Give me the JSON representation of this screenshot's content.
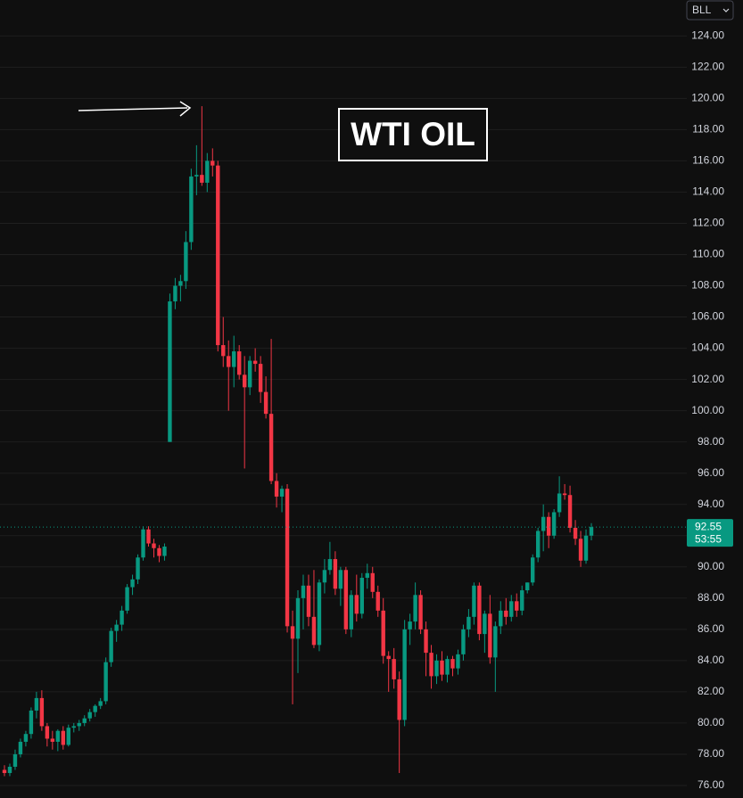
{
  "chart_data": {
    "type": "candlestick",
    "title": "WTI OIL",
    "symbol_menu": "BLL",
    "up_color": "#089981",
    "down_color": "#f23645",
    "ylim": [
      75.2,
      126.3
    ],
    "yticks": [
      {
        "value": 76,
        "label": "76.00"
      },
      {
        "value": 78,
        "label": "78.00"
      },
      {
        "value": 80,
        "label": "80.00"
      },
      {
        "value": 82,
        "label": "82.00"
      },
      {
        "value": 84,
        "label": "84.00"
      },
      {
        "value": 86,
        "label": "86.00"
      },
      {
        "value": 88,
        "label": "88.00"
      },
      {
        "value": 90,
        "label": "90.00"
      },
      {
        "value": 92,
        "label": "92.00"
      },
      {
        "value": 94,
        "label": "94.00"
      },
      {
        "value": 96,
        "label": "96.00"
      },
      {
        "value": 98,
        "label": "98.00"
      },
      {
        "value": 100,
        "label": "100.00"
      },
      {
        "value": 102,
        "label": "102.00"
      },
      {
        "value": 104,
        "label": "104.00"
      },
      {
        "value": 106,
        "label": "106.00"
      },
      {
        "value": 108,
        "label": "108.00"
      },
      {
        "value": 110,
        "label": "110.00"
      },
      {
        "value": 112,
        "label": "112.00"
      },
      {
        "value": 114,
        "label": "114.00"
      },
      {
        "value": 116,
        "label": "116.00"
      },
      {
        "value": 118,
        "label": "118.00"
      },
      {
        "value": 120,
        "label": "120.00"
      },
      {
        "value": 122,
        "label": "122.00"
      },
      {
        "value": 124,
        "label": "124.00"
      }
    ],
    "last_price": {
      "value": 92.55,
      "label": "92.55"
    },
    "countdown": "53:55",
    "ohlc": [
      [
        77,
        77.3,
        76.6,
        76.8
      ],
      [
        76.8,
        77.4,
        76.6,
        77.2
      ],
      [
        77.2,
        78.3,
        77,
        78
      ],
      [
        78,
        79,
        77.8,
        78.8
      ],
      [
        78.8,
        79.5,
        78.5,
        79.3
      ],
      [
        79.3,
        81,
        79,
        80.8
      ],
      [
        80.8,
        82,
        80.3,
        81.6
      ],
      [
        81.6,
        82.1,
        79.5,
        79.8
      ],
      [
        79.8,
        80,
        78.5,
        79
      ],
      [
        79,
        79.5,
        78.3,
        78.8
      ],
      [
        78.8,
        79.6,
        78.2,
        79.5
      ],
      [
        79.5,
        79.8,
        78.3,
        78.6
      ],
      [
        78.6,
        79.9,
        78.5,
        79.7
      ],
      [
        79.7,
        80,
        79.4,
        79.8
      ],
      [
        79.8,
        80.2,
        79.5,
        80
      ],
      [
        80,
        80.5,
        79.8,
        80.3
      ],
      [
        80.3,
        80.9,
        80.1,
        80.7
      ],
      [
        80.7,
        81.2,
        80.4,
        81.1
      ],
      [
        81.1,
        81.6,
        80.9,
        81.4
      ],
      [
        81.4,
        84.2,
        81.2,
        83.9
      ],
      [
        83.9,
        86.1,
        83.6,
        85.9
      ],
      [
        85.9,
        86.6,
        85.2,
        86.3
      ],
      [
        86.3,
        87.5,
        85.9,
        87.2
      ],
      [
        87.2,
        88.9,
        87,
        88.7
      ],
      [
        88.7,
        89.5,
        88.2,
        89.2
      ],
      [
        89.2,
        90.8,
        88.9,
        90.6
      ],
      [
        90.6,
        92.6,
        90.4,
        92.4
      ],
      [
        92.4,
        92.6,
        91.3,
        91.5
      ],
      [
        91.5,
        91.8,
        90.6,
        91.2
      ],
      [
        91.2,
        91.4,
        90.3,
        90.7
      ],
      [
        90.7,
        91.5,
        90.4,
        91.3
      ],
      [
        98,
        107.5,
        98,
        107
      ],
      [
        107,
        108.5,
        106.5,
        108
      ],
      [
        108,
        108.7,
        107,
        108.3
      ],
      [
        108.3,
        111.5,
        107.8,
        110.8
      ],
      [
        110.8,
        115.5,
        110.3,
        115
      ],
      [
        115,
        117,
        113.8,
        115.1
      ],
      [
        115.1,
        119.5,
        114.4,
        114.6
      ],
      [
        114.6,
        116.5,
        114,
        116
      ],
      [
        116,
        116.8,
        115,
        115.7
      ],
      [
        115.7,
        116,
        103.8,
        104.2
      ],
      [
        104.2,
        106,
        102.8,
        103.5
      ],
      [
        103.5,
        104.5,
        100,
        102.8
      ],
      [
        102.8,
        104.8,
        101.5,
        103.8
      ],
      [
        103.8,
        104.2,
        102,
        102.3
      ],
      [
        102.3,
        103.5,
        96.3,
        101.5
      ],
      [
        101.5,
        103.5,
        101,
        103.2
      ],
      [
        103.2,
        104,
        102.5,
        103
      ],
      [
        103,
        103.5,
        100.5,
        101.2
      ],
      [
        101.2,
        102.2,
        99.5,
        99.8
      ],
      [
        99.8,
        104.6,
        95.3,
        95.5
      ],
      [
        95.5,
        96,
        93.8,
        94.5
      ],
      [
        94.5,
        95.2,
        93.5,
        95
      ],
      [
        95,
        95.3,
        85.8,
        86.2
      ],
      [
        86.2,
        87.2,
        81.2,
        85.4
      ],
      [
        85.4,
        88.5,
        83.2,
        88
      ],
      [
        88,
        89.5,
        86,
        88.8
      ],
      [
        88.8,
        89.5,
        86.2,
        86.8
      ],
      [
        86.8,
        89.8,
        84.8,
        85
      ],
      [
        85,
        89.2,
        84.6,
        89
      ],
      [
        89,
        90.5,
        88.3,
        89.8
      ],
      [
        89.8,
        91.6,
        89.5,
        90.5
      ],
      [
        90.5,
        91,
        88.2,
        88.6
      ],
      [
        88.6,
        90,
        87.5,
        89.8
      ],
      [
        89.8,
        90,
        85.7,
        86
      ],
      [
        86,
        88.5,
        85.5,
        88.2
      ],
      [
        88.2,
        89.5,
        86.5,
        87
      ],
      [
        87,
        89.6,
        86.7,
        89.3
      ],
      [
        89.3,
        90.2,
        88.6,
        89.6
      ],
      [
        89.6,
        90,
        88,
        88.4
      ],
      [
        88.4,
        88.8,
        86.8,
        87.2
      ],
      [
        87.2,
        88,
        83.8,
        84.3
      ],
      [
        84.3,
        84.6,
        82,
        84.1
      ],
      [
        84.1,
        84.8,
        82.2,
        82.8
      ],
      [
        82.8,
        83.3,
        76.8,
        80.2
      ],
      [
        80.2,
        86.6,
        79.8,
        86
      ],
      [
        86,
        87,
        85,
        86.5
      ],
      [
        86.5,
        89,
        86,
        88.2
      ],
      [
        88.2,
        88.5,
        85.7,
        86
      ],
      [
        86,
        86.5,
        83,
        84.5
      ],
      [
        84.5,
        85,
        82.2,
        83
      ],
      [
        83,
        84.4,
        82.5,
        84
      ],
      [
        84,
        84.6,
        82.7,
        83.1
      ],
      [
        83.1,
        84.3,
        82.6,
        84.1
      ],
      [
        84.1,
        84.3,
        83,
        83.5
      ],
      [
        83.5,
        84.7,
        83.1,
        84.4
      ],
      [
        84.4,
        86.3,
        84,
        86
      ],
      [
        86,
        87.3,
        85.5,
        86.8
      ],
      [
        86.8,
        89,
        86.3,
        88.8
      ],
      [
        88.8,
        89,
        85.3,
        85.7
      ],
      [
        85.7,
        87.2,
        84.5,
        87
      ],
      [
        87,
        88.2,
        83.8,
        84.2
      ],
      [
        84.2,
        86.5,
        82,
        86.2
      ],
      [
        86.2,
        87.8,
        85.7,
        87.2
      ],
      [
        87.2,
        88,
        86.3,
        86.8
      ],
      [
        86.8,
        88.2,
        86.5,
        87.8
      ],
      [
        87.8,
        88.3,
        86.8,
        87.2
      ],
      [
        87.2,
        88.8,
        86.9,
        88.5
      ],
      [
        88.5,
        89,
        88.3,
        89
      ],
      [
        89,
        90.8,
        88.8,
        90.6
      ],
      [
        90.6,
        92.5,
        90.3,
        92.3
      ],
      [
        92.3,
        94,
        91,
        93.2
      ],
      [
        93.2,
        93.5,
        91.2,
        92
      ],
      [
        92,
        93.7,
        91.8,
        93.5
      ],
      [
        93.5,
        95.8,
        93.2,
        94.7
      ],
      [
        94.7,
        95.3,
        94.3,
        94.6
      ],
      [
        94.6,
        95.2,
        92.2,
        92.5
      ],
      [
        92.5,
        93,
        91.4,
        91.8
      ],
      [
        91.8,
        92.3,
        90,
        90.4
      ],
      [
        90.4,
        92.4,
        90.2,
        92
      ],
      [
        92,
        92.8,
        91.7,
        92.55
      ]
    ]
  }
}
